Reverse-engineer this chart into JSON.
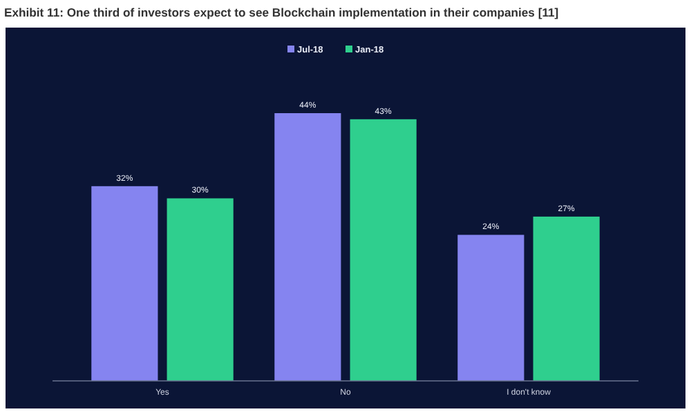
{
  "chart_data": {
    "type": "bar",
    "title": "Exhibit 11: One third of investors expect to see Blockchain implementation in their companies [11]",
    "categories": [
      "Yes",
      "No",
      "I don't know"
    ],
    "series": [
      {
        "name": "Jul-18",
        "color": "#8584f0",
        "values": [
          32,
          44,
          24
        ],
        "value_labels": [
          "32%",
          "44%",
          "24%"
        ]
      },
      {
        "name": "Jan-18",
        "color": "#2fcf8e",
        "values": [
          30,
          43,
          27
        ],
        "value_labels": [
          "30%",
          "43%",
          "27%"
        ]
      }
    ],
    "legend": "top"
  }
}
